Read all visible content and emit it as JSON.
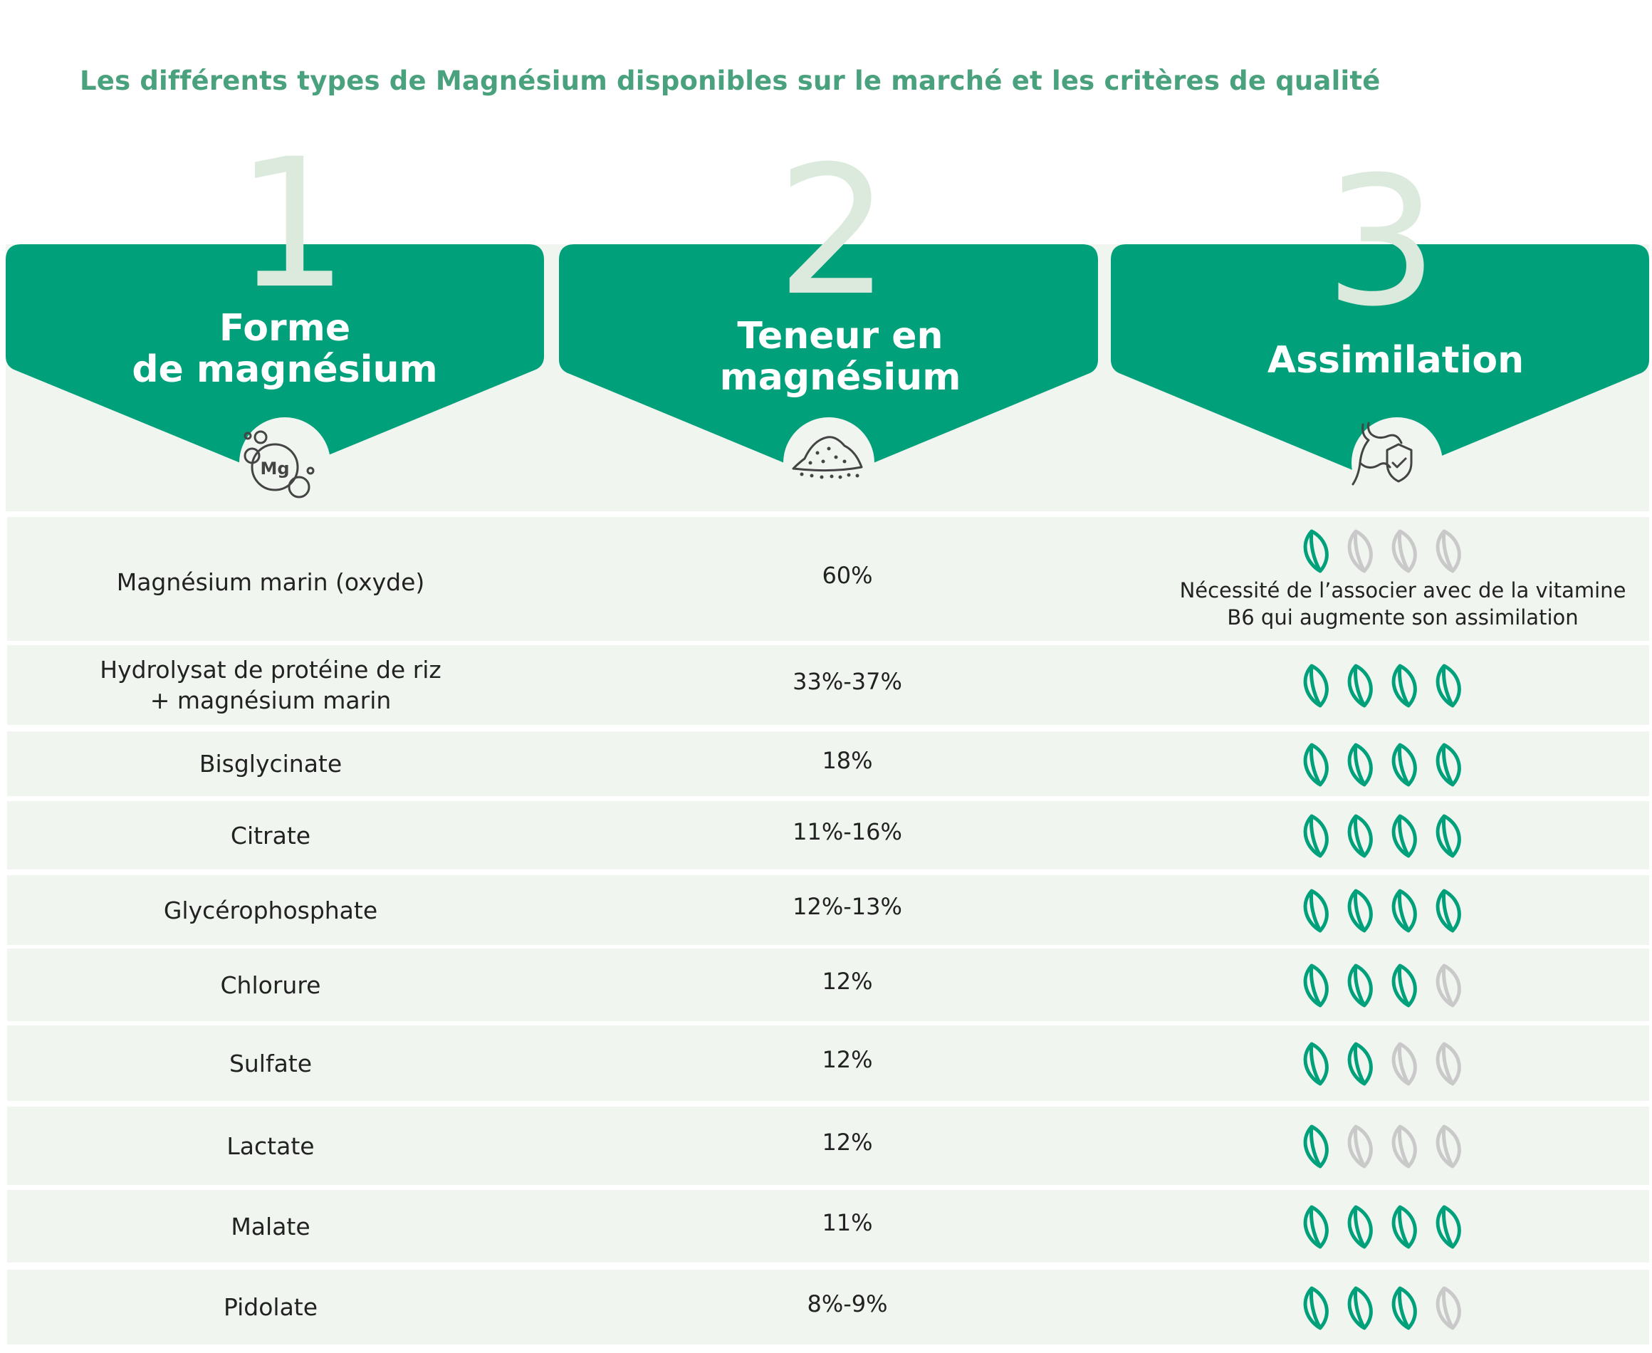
{
  "title": "Les différents types de Magnésium disponibles sur le marché et les critères de qualité",
  "colors": {
    "accent": "#00a07b",
    "accent_light": "#dbeadd",
    "row_bg": "#f0f5ef",
    "title": "#4aa17d",
    "leaf_off": "#c9c9c9"
  },
  "columns": [
    {
      "number": "1",
      "label_line1": "Forme",
      "label_line2": "de magnésium",
      "icon": "mg-molecule-icon",
      "icon_text": "Mg"
    },
    {
      "number": "2",
      "label_line1": "Teneur en",
      "label_line2": "magnésium",
      "icon": "powder-pile-icon"
    },
    {
      "number": "3",
      "label_line1": "Assimilation",
      "label_line2": "",
      "icon": "stomach-shield-icon"
    }
  ],
  "rows": [
    {
      "form": "Magnésium marin (oxyde)",
      "content": "60%",
      "assimilation": 1,
      "note_line1": "Nécessité de l’associer avec de la vitamine",
      "note_line2": "B6 qui augmente son assimilation"
    },
    {
      "form": "Hydrolysat de protéine de riz",
      "form_line2": "+ magnésium marin",
      "content": "33%-37%",
      "assimilation": 4
    },
    {
      "form": "Bisglycinate",
      "content": "18%",
      "assimilation": 4
    },
    {
      "form": "Citrate",
      "content": "11%-16%",
      "assimilation": 4
    },
    {
      "form": "Glycérophosphate",
      "content": "12%-13%",
      "assimilation": 4
    },
    {
      "form": "Chlorure",
      "content": "12%",
      "assimilation": 3
    },
    {
      "form": "Sulfate",
      "content": "12%",
      "assimilation": 2
    },
    {
      "form": "Lactate",
      "content": "12%",
      "assimilation": 1
    },
    {
      "form": "Malate",
      "content": "11%",
      "assimilation": 4
    },
    {
      "form": "Pidolate",
      "content": "8%-9%",
      "assimilation": 3
    }
  ]
}
